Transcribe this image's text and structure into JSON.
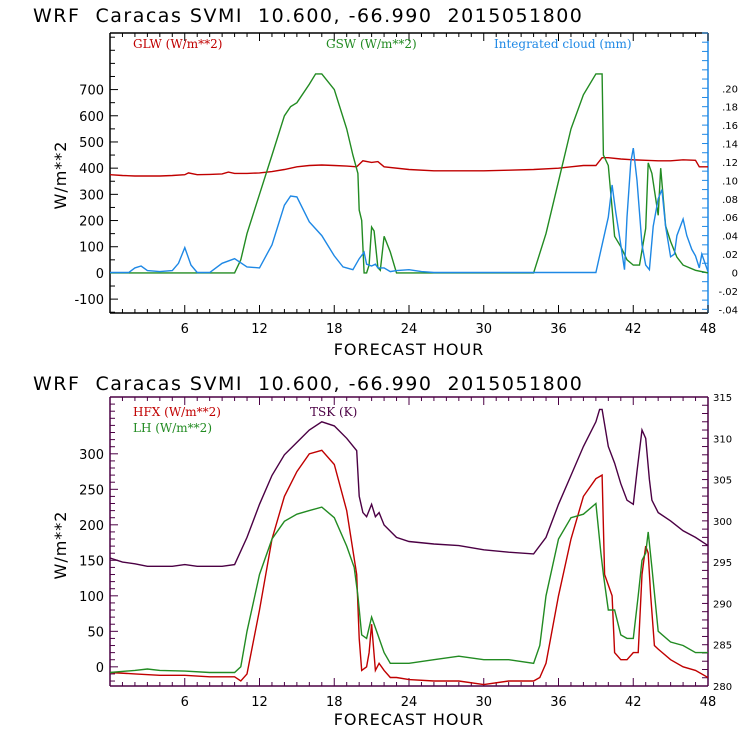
{
  "chart_data": [
    {
      "type": "line",
      "title": "WRF  Caracas SVMI  10.600, -66.990  2015051800",
      "xlabel": "FORECAST HOUR",
      "ylabel": "W/m**2",
      "xlim": [
        0,
        48
      ],
      "ylim": [
        -153,
        916
      ],
      "y2lim": [
        -0.044,
        0.26
      ],
      "x_ticks": [
        6,
        12,
        18,
        24,
        30,
        36,
        42,
        48
      ],
      "x_tick_labels": [
        "6",
        "12",
        "18",
        "24",
        "30",
        "36",
        "42",
        "48"
      ],
      "y_ticks": [
        -100,
        0,
        100,
        200,
        300,
        400,
        500,
        600,
        700
      ],
      "y_tick_labels": [
        "-100",
        "0",
        "100",
        "200",
        "300",
        "400",
        "500",
        "600",
        "700"
      ],
      "y2_ticks": [
        -0.04,
        -0.02,
        0,
        0.02,
        0.04,
        0.06,
        0.08,
        0.1,
        0.12,
        0.14,
        0.16,
        0.18,
        0.2
      ],
      "y2_tick_labels": [
        "-.04",
        "-.02",
        "0",
        ".02",
        ".04",
        ".06",
        ".08",
        ".10",
        ".12",
        ".14",
        ".16",
        ".18",
        ".20"
      ],
      "grid": false,
      "legend_position": "top",
      "series": [
        {
          "name": "GLW (W/m**2)",
          "color": "#c00000",
          "axis": "left",
          "x": [
            0,
            1,
            2,
            3,
            4,
            5,
            6,
            6.3,
            7,
            8,
            9,
            9.5,
            10,
            11,
            12,
            13,
            14,
            15,
            16,
            17,
            18,
            19,
            19.8,
            20.3,
            21,
            21.5,
            22,
            24,
            26,
            28,
            30,
            32,
            34,
            36,
            37,
            38,
            39,
            39.5,
            40,
            41,
            42,
            43,
            44,
            45,
            46,
            47,
            47.3,
            48
          ],
          "values": [
            375,
            372,
            370,
            370,
            370,
            372,
            375,
            382,
            375,
            376,
            378,
            385,
            380,
            380,
            382,
            387,
            395,
            405,
            410,
            412,
            410,
            408,
            405,
            428,
            422,
            425,
            405,
            395,
            390,
            390,
            390,
            392,
            395,
            400,
            405,
            410,
            410,
            440,
            440,
            435,
            432,
            430,
            428,
            428,
            432,
            430,
            405,
            405
          ]
        },
        {
          "name": "GSW (W/m**2)",
          "color": "#228b22",
          "axis": "left",
          "x": [
            0,
            10,
            10.5,
            11,
            12,
            13,
            14,
            14.5,
            15,
            16,
            16.5,
            17,
            18,
            19,
            19.5,
            19.9,
            20,
            20.2,
            20.4,
            20.6,
            20.8,
            21,
            21.2,
            21.5,
            21.7,
            22,
            22.5,
            23,
            24,
            30,
            34,
            35,
            36,
            37,
            38,
            39,
            39.5,
            39.6,
            40,
            40.5,
            41,
            41.5,
            42,
            42.5,
            43,
            43.2,
            43.5,
            44,
            44.2,
            44.6,
            45,
            45.5,
            46,
            47,
            48
          ],
          "values": [
            0,
            0,
            50,
            150,
            300,
            450,
            600,
            635,
            650,
            720,
            760,
            760,
            700,
            550,
            450,
            380,
            240,
            200,
            0,
            0,
            30,
            175,
            160,
            20,
            10,
            140,
            80,
            0,
            0,
            0,
            0,
            150,
            350,
            550,
            680,
            760,
            760,
            450,
            410,
            140,
            100,
            50,
            30,
            30,
            170,
            420,
            380,
            220,
            400,
            180,
            120,
            60,
            30,
            10,
            0
          ]
        },
        {
          "name": "Integrated cloud (mm)",
          "color": "#1e88e5",
          "axis": "right",
          "x": [
            0,
            1.5,
            2,
            2.5,
            3,
            4,
            5,
            5.5,
            6,
            6.5,
            7,
            8,
            9,
            10,
            11,
            12,
            13,
            14,
            14.5,
            15,
            16,
            17,
            18,
            18.7,
            19,
            19.5,
            20,
            20.4,
            20.6,
            21,
            21.3,
            21.5,
            22,
            22.5,
            23,
            24,
            25,
            26,
            30,
            35,
            38,
            38.5,
            39,
            39.5,
            40,
            40.3,
            40.6,
            41,
            41.3,
            41.5,
            41.8,
            42,
            42.3,
            42.7,
            43,
            43.3,
            43.6,
            44,
            44.3,
            44.6,
            45,
            45.3,
            45.5,
            46,
            46.3,
            46.7,
            47,
            47.3,
            47.5,
            48
          ],
          "values": [
            0,
            0,
            0.005,
            0.007,
            0.002,
            0.001,
            0.002,
            0.01,
            0.027,
            0.008,
            0,
            0,
            0.01,
            0.015,
            0.006,
            0.005,
            0.03,
            0.073,
            0.083,
            0.082,
            0.055,
            0.04,
            0.018,
            0.006,
            0.005,
            0.003,
            0.015,
            0.022,
            0.009,
            0.007,
            0.009,
            0.005,
            0.005,
            0.001,
            0.002,
            0.003,
            0.001,
            0,
            0,
            0,
            0,
            0.0,
            0.0,
            0.03,
            0.06,
            0.095,
            0.065,
            0.03,
            0.003,
            0.06,
            0.12,
            0.135,
            0.1,
            0.03,
            0.008,
            0.003,
            0.05,
            0.08,
            0.09,
            0.05,
            0.017,
            0.02,
            0.04,
            0.058,
            0.04,
            0.025,
            0.018,
            0.005,
            0.02,
            0.001
          ]
        }
      ]
    },
    {
      "type": "line",
      "title": "WRF  Caracas SVMI  10.600, -66.990  2015051800",
      "xlabel": "FORECAST HOUR",
      "ylabel": "W/m**2",
      "xlim": [
        0,
        48
      ],
      "ylim": [
        -27,
        380
      ],
      "y2lim": [
        280,
        315
      ],
      "x_ticks": [
        6,
        12,
        18,
        24,
        30,
        36,
        42,
        48
      ],
      "x_tick_labels": [
        "6",
        "12",
        "18",
        "24",
        "30",
        "36",
        "42",
        "48"
      ],
      "y_ticks": [
        0,
        50,
        100,
        150,
        200,
        250,
        300
      ],
      "y_tick_labels": [
        "0",
        "50",
        "100",
        "150",
        "200",
        "250",
        "300"
      ],
      "y2_ticks": [
        280,
        285,
        290,
        295,
        300,
        305,
        310,
        315
      ],
      "y2_tick_labels": [
        "280",
        "285",
        "290",
        "295",
        "300",
        "305",
        "310",
        "315"
      ],
      "grid": false,
      "legend_position": "top-left",
      "series": [
        {
          "name": "HFX (W/m**2)",
          "color": "#c00000",
          "axis": "left",
          "x": [
            0,
            2,
            4,
            6,
            8,
            10,
            10.5,
            11,
            12,
            13,
            14,
            15,
            16,
            17,
            18,
            19,
            19.8,
            20,
            20.2,
            20.6,
            20.8,
            21.0,
            21.3,
            21.6,
            22,
            22.5,
            23,
            24,
            26,
            28,
            30,
            32,
            34,
            34.5,
            35,
            36,
            37,
            38,
            39,
            39.5,
            39.7,
            40.3,
            40.5,
            41,
            41.5,
            42,
            42.4,
            42.7,
            43,
            43.2,
            43.4,
            43.7,
            44,
            45,
            46,
            47,
            48
          ],
          "values": [
            -8,
            -10,
            -12,
            -12,
            -14,
            -14,
            -20,
            -10,
            80,
            180,
            240,
            275,
            300,
            305,
            285,
            220,
            130,
            40,
            -5,
            0,
            20,
            60,
            -5,
            5,
            -5,
            -15,
            -15,
            -18,
            -20,
            -20,
            -25,
            -20,
            -20,
            -15,
            5,
            100,
            180,
            240,
            265,
            270,
            130,
            100,
            20,
            10,
            10,
            20,
            20,
            130,
            170,
            160,
            100,
            30,
            25,
            10,
            0,
            -5,
            -15
          ]
        },
        {
          "name": "LH (W/m**2)",
          "color": "#228b22",
          "axis": "left",
          "x": [
            0,
            2,
            3,
            4,
            6,
            8,
            10,
            10.5,
            11,
            12,
            13,
            14,
            15,
            16,
            17,
            18,
            19,
            19.6,
            19.9,
            20.2,
            20.6,
            21,
            21.5,
            22,
            22.5,
            23,
            24,
            26,
            28,
            30,
            32,
            34,
            34.5,
            35,
            36,
            37,
            38,
            39,
            39.4,
            39.6,
            40,
            40.5,
            41,
            41.5,
            42,
            42.4,
            42.7,
            43,
            43.2,
            43.5,
            44,
            45,
            46,
            47,
            48
          ],
          "values": [
            -8,
            -5,
            -3,
            -5,
            -6,
            -8,
            -8,
            0,
            50,
            130,
            180,
            205,
            215,
            220,
            225,
            210,
            170,
            140,
            100,
            45,
            40,
            70,
            45,
            20,
            5,
            5,
            5,
            10,
            15,
            10,
            10,
            5,
            30,
            100,
            180,
            210,
            215,
            230,
            160,
            130,
            80,
            80,
            45,
            40,
            40,
            100,
            150,
            160,
            190,
            140,
            50,
            35,
            30,
            20,
            20
          ]
        },
        {
          "name": "TSK (K)",
          "color": "#4b0044",
          "axis": "right",
          "x": [
            0,
            1,
            2,
            3,
            4,
            5,
            6,
            7,
            8,
            9,
            10,
            11,
            12,
            13,
            14,
            15,
            16,
            17,
            18,
            19,
            19.8,
            20,
            20.3,
            20.6,
            21,
            21.3,
            21.6,
            22,
            23,
            24,
            26,
            28,
            30,
            32,
            34,
            35,
            36,
            37,
            38,
            39,
            39.3,
            39.5,
            40,
            40.5,
            41,
            41.5,
            42,
            42.3,
            42.7,
            43,
            43.3,
            43.5,
            44,
            45,
            46,
            47,
            48
          ],
          "values": [
            295.5,
            295,
            294.8,
            294.5,
            294.5,
            294.5,
            294.7,
            294.5,
            294.5,
            294.5,
            294.7,
            298,
            302,
            305.5,
            308,
            309.5,
            311,
            312,
            311.5,
            310,
            308.5,
            303,
            301,
            300.5,
            302,
            300.5,
            301,
            299.5,
            298,
            297.5,
            297.2,
            297,
            296.5,
            296.2,
            296,
            298,
            302,
            305.5,
            309,
            312,
            313.5,
            313.5,
            309,
            307,
            304.5,
            302.5,
            302,
            306,
            311,
            310,
            305,
            302.5,
            301,
            300,
            298.8,
            298,
            297
          ]
        }
      ]
    }
  ]
}
